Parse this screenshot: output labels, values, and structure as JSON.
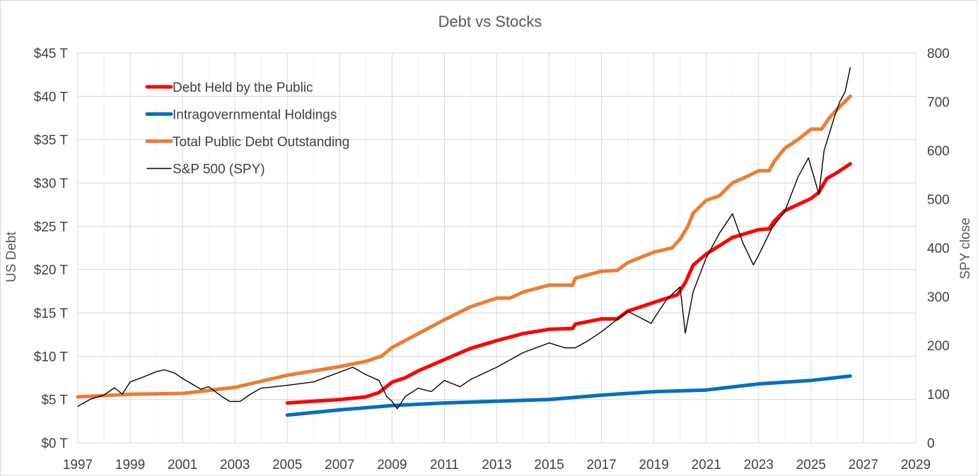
{
  "chart_data": {
    "type": "line",
    "title": "Debt vs Stocks",
    "ylabel": "US Debt",
    "y2label": "SPY close",
    "xlim": [
      1997,
      2029
    ],
    "ylim": [
      0,
      45
    ],
    "y2lim": [
      0,
      800
    ],
    "x_ticks": [
      "1997",
      "1999",
      "2001",
      "2003",
      "2005",
      "2007",
      "2009",
      "2011",
      "2013",
      "2015",
      "2017",
      "2019",
      "2021",
      "2023",
      "2025",
      "2027",
      "2029"
    ],
    "y_ticks": [
      "$0 T",
      "$5 T",
      "$10 T",
      "$15 T",
      "$20 T",
      "$25 T",
      "$30 T",
      "$35 T",
      "$40 T",
      "$45 T"
    ],
    "y2_ticks": [
      "0",
      "100",
      "200",
      "300",
      "400",
      "500",
      "600",
      "700",
      "800"
    ],
    "grid": true,
    "legend_position": "top-left",
    "series": [
      {
        "name": "Debt Held by the Public",
        "axis": "left",
        "color": "#ff0000",
        "points": [
          [
            2005.0,
            4.6
          ],
          [
            2006.0,
            4.8
          ],
          [
            2007.0,
            5.0
          ],
          [
            2008.0,
            5.3
          ],
          [
            2008.5,
            5.8
          ],
          [
            2009.0,
            7.0
          ],
          [
            2009.5,
            7.5
          ],
          [
            2010.0,
            8.3
          ],
          [
            2011.0,
            9.6
          ],
          [
            2012.0,
            10.9
          ],
          [
            2013.0,
            11.8
          ],
          [
            2014.0,
            12.6
          ],
          [
            2015.0,
            13.1
          ],
          [
            2015.9,
            13.2
          ],
          [
            2016.0,
            13.7
          ],
          [
            2017.0,
            14.3
          ],
          [
            2017.6,
            14.3
          ],
          [
            2018.0,
            15.2
          ],
          [
            2019.0,
            16.2
          ],
          [
            2019.9,
            17.1
          ],
          [
            2020.2,
            18.5
          ],
          [
            2020.5,
            20.5
          ],
          [
            2021.0,
            21.8
          ],
          [
            2022.0,
            23.7
          ],
          [
            2023.0,
            24.6
          ],
          [
            2023.4,
            24.7
          ],
          [
            2023.6,
            25.6
          ],
          [
            2024.0,
            26.8
          ],
          [
            2025.0,
            28.2
          ],
          [
            2025.3,
            28.9
          ],
          [
            2025.6,
            30.5
          ],
          [
            2026.0,
            31.2
          ],
          [
            2026.5,
            32.2
          ]
        ]
      },
      {
        "name": "Intragovernmental Holdings",
        "axis": "left",
        "color": "#0070c0",
        "points": [
          [
            2005.0,
            3.2
          ],
          [
            2007.0,
            3.8
          ],
          [
            2009.0,
            4.3
          ],
          [
            2011.0,
            4.6
          ],
          [
            2013.0,
            4.8
          ],
          [
            2015.0,
            5.0
          ],
          [
            2017.0,
            5.5
          ],
          [
            2019.0,
            5.9
          ],
          [
            2021.0,
            6.1
          ],
          [
            2023.0,
            6.8
          ],
          [
            2025.0,
            7.2
          ],
          [
            2026.5,
            7.7
          ]
        ]
      },
      {
        "name": "Total Public Debt Outstanding",
        "axis": "left",
        "color": "#ed7d31",
        "points": [
          [
            1997.0,
            5.3
          ],
          [
            1999.0,
            5.6
          ],
          [
            2001.0,
            5.7
          ],
          [
            2003.0,
            6.4
          ],
          [
            2005.0,
            7.8
          ],
          [
            2007.0,
            8.8
          ],
          [
            2008.0,
            9.4
          ],
          [
            2008.6,
            10.0
          ],
          [
            2009.0,
            11.0
          ],
          [
            2010.0,
            12.6
          ],
          [
            2011.0,
            14.2
          ],
          [
            2012.0,
            15.7
          ],
          [
            2013.0,
            16.7
          ],
          [
            2013.5,
            16.7
          ],
          [
            2014.0,
            17.4
          ],
          [
            2015.0,
            18.2
          ],
          [
            2015.9,
            18.2
          ],
          [
            2016.0,
            19.0
          ],
          [
            2017.0,
            19.8
          ],
          [
            2017.6,
            19.9
          ],
          [
            2018.0,
            20.8
          ],
          [
            2019.0,
            22.0
          ],
          [
            2019.7,
            22.5
          ],
          [
            2020.0,
            23.5
          ],
          [
            2020.3,
            25.0
          ],
          [
            2020.5,
            26.5
          ],
          [
            2021.0,
            28.0
          ],
          [
            2021.5,
            28.5
          ],
          [
            2022.0,
            30.0
          ],
          [
            2022.6,
            30.8
          ],
          [
            2023.0,
            31.4
          ],
          [
            2023.4,
            31.4
          ],
          [
            2023.6,
            32.5
          ],
          [
            2024.0,
            34.0
          ],
          [
            2024.5,
            35.0
          ],
          [
            2025.0,
            36.2
          ],
          [
            2025.4,
            36.2
          ],
          [
            2025.7,
            37.5
          ],
          [
            2026.0,
            38.5
          ],
          [
            2026.5,
            40.0
          ]
        ]
      },
      {
        "name": "S&P 500 (SPY)",
        "axis": "right",
        "color": "#000000",
        "points": [
          [
            1997.0,
            75
          ],
          [
            1997.5,
            90
          ],
          [
            1998.0,
            98
          ],
          [
            1998.4,
            113
          ],
          [
            1998.7,
            100
          ],
          [
            1999.0,
            125
          ],
          [
            1999.5,
            135
          ],
          [
            2000.0,
            146
          ],
          [
            2000.3,
            150
          ],
          [
            2000.7,
            143
          ],
          [
            2001.0,
            132
          ],
          [
            2001.7,
            110
          ],
          [
            2002.0,
            115
          ],
          [
            2002.5,
            95
          ],
          [
            2002.8,
            85
          ],
          [
            2003.2,
            85
          ],
          [
            2003.6,
            100
          ],
          [
            2004.0,
            112
          ],
          [
            2005.0,
            118
          ],
          [
            2006.0,
            125
          ],
          [
            2007.0,
            145
          ],
          [
            2007.5,
            155
          ],
          [
            2008.0,
            140
          ],
          [
            2008.5,
            128
          ],
          [
            2008.8,
            95
          ],
          [
            2009.0,
            85
          ],
          [
            2009.2,
            70
          ],
          [
            2009.5,
            95
          ],
          [
            2010.0,
            112
          ],
          [
            2010.5,
            105
          ],
          [
            2011.0,
            128
          ],
          [
            2011.6,
            115
          ],
          [
            2012.0,
            130
          ],
          [
            2013.0,
            155
          ],
          [
            2014.0,
            185
          ],
          [
            2015.0,
            205
          ],
          [
            2015.6,
            195
          ],
          [
            2016.0,
            195
          ],
          [
            2016.5,
            210
          ],
          [
            2017.0,
            228
          ],
          [
            2018.0,
            270
          ],
          [
            2018.9,
            245
          ],
          [
            2019.0,
            255
          ],
          [
            2019.5,
            295
          ],
          [
            2020.0,
            320
          ],
          [
            2020.2,
            225
          ],
          [
            2020.5,
            310
          ],
          [
            2021.0,
            380
          ],
          [
            2021.5,
            430
          ],
          [
            2022.0,
            470
          ],
          [
            2022.4,
            410
          ],
          [
            2022.8,
            365
          ],
          [
            2023.0,
            385
          ],
          [
            2023.5,
            440
          ],
          [
            2024.0,
            475
          ],
          [
            2024.5,
            545
          ],
          [
            2024.9,
            585
          ],
          [
            2025.3,
            510
          ],
          [
            2025.5,
            600
          ],
          [
            2025.9,
            670
          ],
          [
            2026.1,
            700
          ],
          [
            2026.3,
            720
          ],
          [
            2026.5,
            770
          ]
        ]
      }
    ]
  }
}
